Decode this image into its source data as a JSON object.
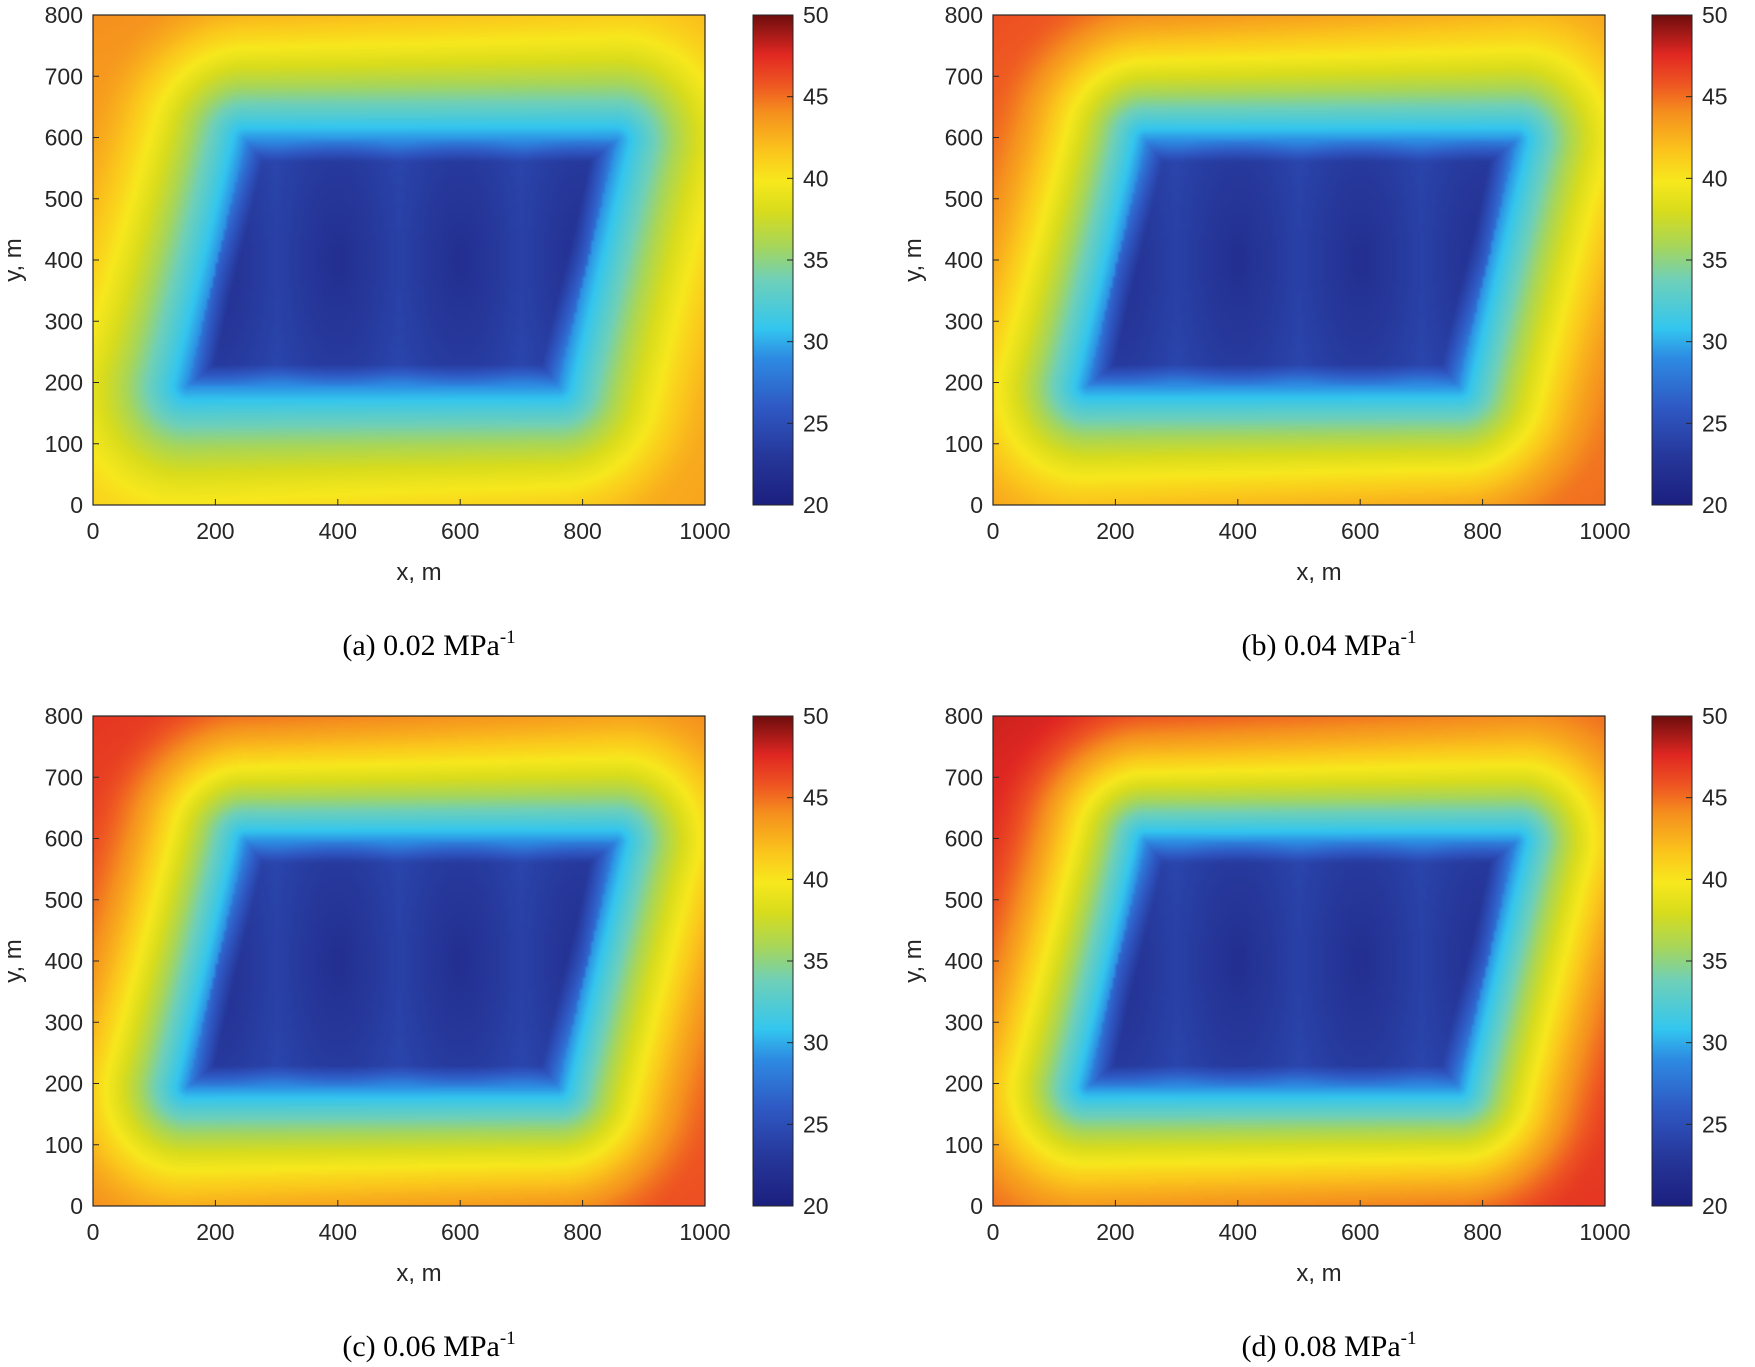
{
  "chart_data": [
    {
      "type": "heatmap",
      "panel": "a",
      "caption": "(a) 0.02 MPa",
      "caption_sup": "-1",
      "xlabel": "x, m",
      "ylabel": "y, m",
      "xlim": [
        0,
        1000
      ],
      "ylim": [
        0,
        800
      ],
      "xticks": [
        0,
        200,
        400,
        600,
        800,
        1000
      ],
      "yticks": [
        0,
        100,
        200,
        300,
        400,
        500,
        600,
        700,
        800
      ],
      "colorbar": {
        "min": 20,
        "max": 50,
        "ticks": [
          20,
          25,
          30,
          35,
          40,
          45,
          50
        ]
      },
      "field": {
        "outer_tl": 44,
        "outer_tr": 42,
        "outer_bl": 41,
        "outer_br": 43,
        "basin_min": 22,
        "basin_edge": 29
      },
      "basin_corners": [
        [
          250,
          595
        ],
        [
          855,
          595
        ],
        [
          760,
          195
        ],
        [
          155,
          195
        ]
      ],
      "wells": [
        [
          200,
          390
        ],
        [
          400,
          400
        ],
        [
          600,
          400
        ],
        [
          800,
          405
        ]
      ]
    },
    {
      "type": "heatmap",
      "panel": "b",
      "caption": "(b) 0.04 MPa",
      "caption_sup": "-1",
      "xlabel": "x, m",
      "ylabel": "y, m",
      "xlim": [
        0,
        1000
      ],
      "ylim": [
        0,
        800
      ],
      "xticks": [
        0,
        200,
        400,
        600,
        800,
        1000
      ],
      "yticks": [
        0,
        100,
        200,
        300,
        400,
        500,
        600,
        700,
        800
      ],
      "colorbar": {
        "min": 20,
        "max": 50,
        "ticks": [
          20,
          25,
          30,
          35,
          40,
          45,
          50
        ]
      },
      "field": {
        "outer_tl": 46,
        "outer_tr": 43,
        "outer_bl": 43,
        "outer_br": 45,
        "basin_min": 22,
        "basin_edge": 29
      },
      "basin_corners": [
        [
          250,
          595
        ],
        [
          855,
          595
        ],
        [
          760,
          195
        ],
        [
          155,
          195
        ]
      ],
      "wells": [
        [
          200,
          390
        ],
        [
          400,
          400
        ],
        [
          600,
          400
        ],
        [
          800,
          405
        ]
      ]
    },
    {
      "type": "heatmap",
      "panel": "c",
      "caption": "(c) 0.06 MPa",
      "caption_sup": "-1",
      "xlabel": "x, m",
      "ylabel": "y, m",
      "xlim": [
        0,
        1000
      ],
      "ylim": [
        0,
        800
      ],
      "xticks": [
        0,
        200,
        400,
        600,
        800,
        1000
      ],
      "yticks": [
        0,
        100,
        200,
        300,
        400,
        500,
        600,
        700,
        800
      ],
      "colorbar": {
        "min": 20,
        "max": 50,
        "ticks": [
          20,
          25,
          30,
          35,
          40,
          45,
          50
        ]
      },
      "field": {
        "outer_tl": 47,
        "outer_tr": 44,
        "outer_bl": 44,
        "outer_br": 46,
        "basin_min": 22,
        "basin_edge": 29
      },
      "basin_corners": [
        [
          250,
          595
        ],
        [
          855,
          595
        ],
        [
          760,
          195
        ],
        [
          155,
          195
        ]
      ],
      "wells": [
        [
          200,
          390
        ],
        [
          400,
          400
        ],
        [
          600,
          400
        ],
        [
          800,
          405
        ]
      ]
    },
    {
      "type": "heatmap",
      "panel": "d",
      "caption": "(d) 0.08 MPa",
      "caption_sup": "-1",
      "xlabel": "x, m",
      "ylabel": "y, m",
      "xlim": [
        0,
        1000
      ],
      "ylim": [
        0,
        800
      ],
      "xticks": [
        0,
        200,
        400,
        600,
        800,
        1000
      ],
      "yticks": [
        0,
        100,
        200,
        300,
        400,
        500,
        600,
        700,
        800
      ],
      "colorbar": {
        "min": 20,
        "max": 50,
        "ticks": [
          20,
          25,
          30,
          35,
          40,
          45,
          50
        ]
      },
      "field": {
        "outer_tl": 48,
        "outer_tr": 45,
        "outer_bl": 45,
        "outer_br": 47,
        "basin_min": 22,
        "basin_edge": 29
      },
      "basin_corners": [
        [
          250,
          595
        ],
        [
          855,
          595
        ],
        [
          760,
          195
        ],
        [
          155,
          195
        ]
      ],
      "wells": [
        [
          200,
          390
        ],
        [
          400,
          400
        ],
        [
          600,
          400
        ],
        [
          800,
          405
        ]
      ]
    }
  ]
}
